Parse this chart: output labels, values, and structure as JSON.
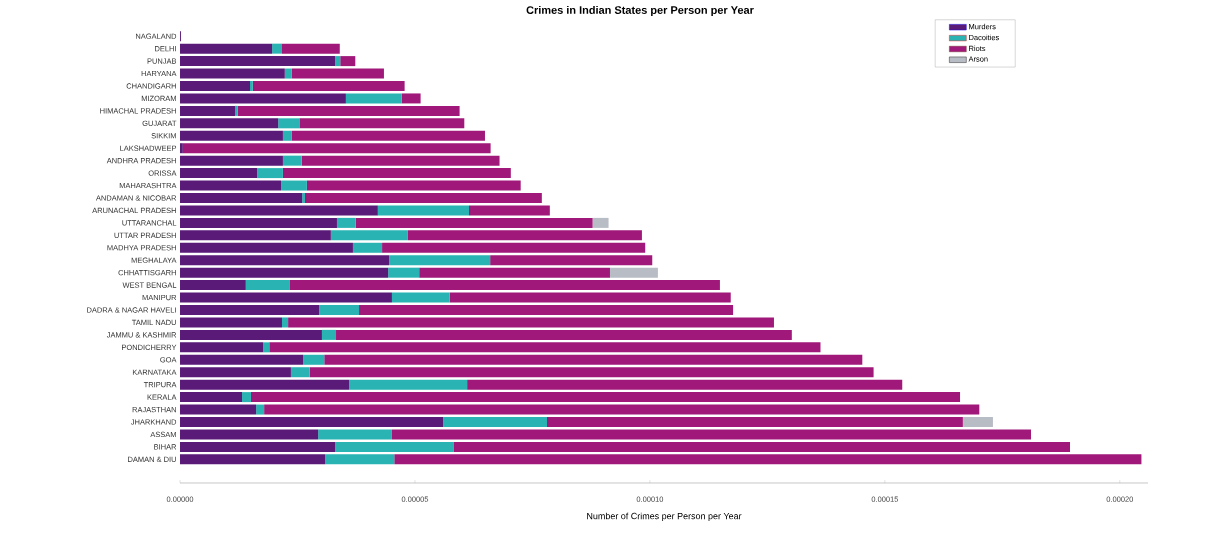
{
  "chart_data": {
    "type": "bar",
    "orientation": "horizontal",
    "stacked": true,
    "title": "Crimes in Indian States per Person per Year",
    "xlabel": "Number of Crimes per Person per Year",
    "categories": [
      "NAGALAND",
      "DELHI",
      "PUNJAB",
      "HARYANA",
      "CHANDIGARH",
      "MIZORAM",
      "HIMACHAL PRADESH",
      "GUJARAT",
      "SIKKIM",
      "LAKSHADWEEP",
      "ANDHRA PRADESH",
      "ORISSA",
      "MAHARASHTRA",
      "ANDAMAN & NICOBAR",
      "ARUNACHAL PRADESH",
      "UTTARANCHAL",
      "UTTAR PRADESH",
      "MADHYA PRADESH",
      "MEGHALAYA",
      "CHHATTISGARH",
      "WEST BENGAL",
      "MANIPUR",
      "DADRA & NAGAR HAVELI",
      "TAMIL NADU",
      "JAMMU & KASHMIR",
      "PONDICHERRY",
      "GOA",
      "KARNATAKA",
      "TRIPURA",
      "KERALA",
      "RAJASTHAN",
      "JHARKHAND",
      "ASSAM",
      "BIHAR",
      "DAMAN & DIU"
    ],
    "series": [
      {
        "name": "Murders",
        "color": "#5a1a78",
        "values": [
          2e-07,
          1.96e-05,
          3.3e-05,
          2.23e-05,
          1.49e-05,
          3.53e-05,
          1.17e-05,
          2.09e-05,
          2.19e-05,
          6e-07,
          2.19e-05,
          1.64e-05,
          2.15e-05,
          2.6e-05,
          4.21e-05,
          3.34e-05,
          3.21e-05,
          3.68e-05,
          4.45e-05,
          4.43e-05,
          1.4e-05,
          4.51e-05,
          2.96e-05,
          2.17e-05,
          3.02e-05,
          1.77e-05,
          2.62e-05,
          2.36e-05,
          3.6e-05,
          1.32e-05,
          1.62e-05,
          5.6e-05,
          2.94e-05,
          3.3e-05,
          3.09e-05
        ]
      },
      {
        "name": "Dacoities",
        "color": "#2ab3b3",
        "values": [
          0,
          2.1e-06,
          1.1e-06,
          1.5e-06,
          6e-07,
          1.19e-05,
          6e-07,
          4.5e-06,
          1.9e-06,
          0,
          4e-06,
          5.5e-06,
          5.5e-06,
          6e-07,
          1.94e-05,
          4e-06,
          1.64e-05,
          6.2e-06,
          2.15e-05,
          6.6e-06,
          9.4e-06,
          1.23e-05,
          8.5e-06,
          1.3e-06,
          3e-06,
          1.3e-06,
          4.5e-06,
          4e-06,
          2.51e-05,
          1.9e-06,
          1.7e-06,
          2.21e-05,
          1.57e-05,
          2.53e-05,
          1.47e-05
        ]
      },
      {
        "name": "Riots",
        "color": "#a0197a",
        "values": [
          0,
          1.23e-05,
          3.2e-06,
          1.96e-05,
          3.23e-05,
          4e-06,
          4.72e-05,
          3.51e-05,
          4.11e-05,
          6.55e-05,
          4.21e-05,
          4.85e-05,
          4.55e-05,
          5.04e-05,
          1.72e-05,
          5.04e-05,
          4.98e-05,
          5.6e-05,
          3.45e-05,
          4.06e-05,
          9.15e-05,
          5.98e-05,
          7.96e-05,
          0.0001034,
          9.7e-05,
          0.0001173,
          0.0001145,
          0.00012,
          9.26e-05,
          0.0001509,
          0.0001522,
          8.85e-05,
          0.000136,
          0.0001311,
          0.000159
        ]
      },
      {
        "name": "Arson",
        "color": "#b8bcc4",
        "values": [
          0,
          0,
          0,
          0,
          0,
          0,
          0,
          0,
          0,
          0,
          0,
          0,
          0,
          0,
          0,
          3.4e-06,
          0,
          0,
          0,
          1.02e-05,
          0,
          0,
          0,
          0,
          0,
          0,
          0,
          0,
          0,
          0,
          0,
          6.4e-06,
          0,
          0,
          0
        ]
      }
    ],
    "xlim": [
      0,
      0.000206
    ],
    "xticks": [
      {
        "value": 0,
        "label": "0.00000"
      },
      {
        "value": 5e-05,
        "label": "0.00005"
      },
      {
        "value": 0.0001,
        "label": "0.00010"
      },
      {
        "value": 0.00015,
        "label": "0.00015"
      },
      {
        "value": 0.0002,
        "label": "0.00020"
      }
    ],
    "legend": "top right",
    "grid": false
  }
}
